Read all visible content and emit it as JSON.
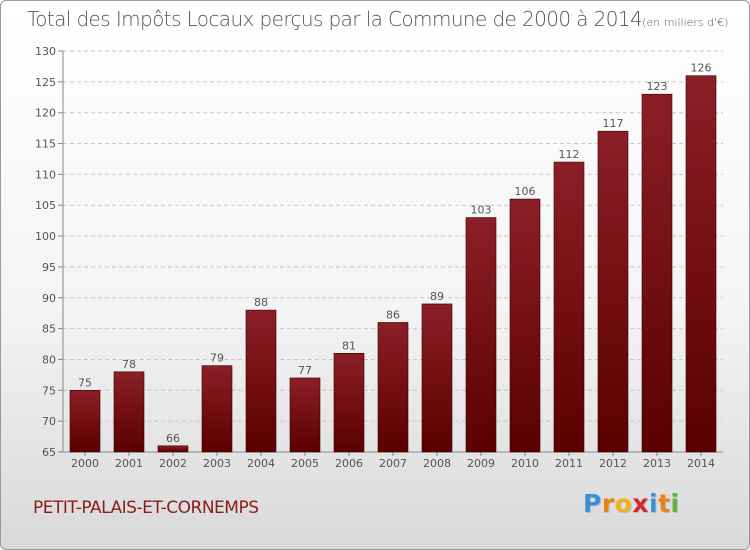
{
  "chart_data": {
    "type": "bar",
    "title": "Total des Impôts Locaux perçus par la Commune de 2000 à 2014",
    "subtitle": "(en milliers d'€)",
    "categories": [
      "2000",
      "2001",
      "2002",
      "2003",
      "2004",
      "2005",
      "2006",
      "2007",
      "2008",
      "2009",
      "2010",
      "2011",
      "2012",
      "2013",
      "2014"
    ],
    "values": [
      75,
      78,
      66,
      79,
      88,
      77,
      81,
      86,
      89,
      103,
      106,
      112,
      117,
      123,
      126
    ],
    "ylim": [
      65,
      130
    ],
    "yticks": [
      65,
      70,
      75,
      80,
      85,
      90,
      95,
      100,
      105,
      110,
      115,
      120,
      125,
      130
    ],
    "xlabel": "",
    "ylabel": "",
    "bar_color": "#8b1f27",
    "bar_color_dark": "#5a0000"
  },
  "footer": {
    "commune": "PETIT-PALAIS-ET-CORNEMPS",
    "logo_letters": [
      "P",
      "r",
      "o",
      "x",
      "i",
      "t",
      "i"
    ],
    "logo_colors": [
      "#3b8fd6",
      "#e8821a",
      "#f2b11a",
      "#d4262e",
      "#3b8fd6",
      "#e8821a",
      "#5db33a"
    ]
  }
}
